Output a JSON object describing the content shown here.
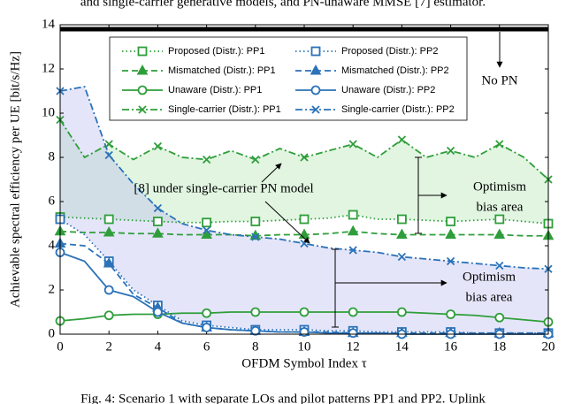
{
  "chart_data": {
    "type": "line",
    "header_text": "and single-carrier generative models, and PN-unaware MMSE [7] estimator.",
    "caption": "Fig. 4: Scenario 1 with separate LOs and pilot patterns PP1 and PP2. Uplink",
    "xlabel": "OFDM Symbol Index τ",
    "ylabel": "Achievable spectral efficiency per UE [bit/s/Hz]",
    "xlim": [
      0,
      20
    ],
    "ylim": [
      0,
      14
    ],
    "xticks": [
      0,
      2,
      4,
      6,
      8,
      10,
      12,
      14,
      16,
      18,
      20
    ],
    "yticks": [
      0,
      2,
      4,
      6,
      8,
      10,
      12,
      14
    ],
    "marker_every": 2,
    "x": [
      0,
      1,
      2,
      3,
      4,
      5,
      6,
      7,
      8,
      9,
      10,
      11,
      12,
      13,
      14,
      15,
      16,
      17,
      18,
      19,
      20
    ],
    "series": [
      {
        "name": "Proposed (Distr.): PP1",
        "color": "#2f9e3a",
        "marker": "square",
        "linestyle": "dotted",
        "values": [
          5.3,
          5.25,
          5.2,
          5.15,
          5.1,
          5.05,
          5.05,
          5.1,
          5.1,
          5.15,
          5.2,
          5.25,
          5.4,
          5.2,
          5.2,
          5.15,
          5.1,
          5.15,
          5.2,
          5.1,
          5.0
        ]
      },
      {
        "name": "Mismatched (Distr.): PP1",
        "color": "#2f9e3a",
        "marker": "triangle",
        "linestyle": "dashed",
        "values": [
          4.65,
          4.6,
          4.6,
          4.55,
          4.55,
          4.5,
          4.5,
          4.5,
          4.45,
          4.5,
          4.5,
          4.55,
          4.65,
          4.55,
          4.5,
          4.5,
          4.5,
          4.5,
          4.5,
          4.45,
          4.45
        ]
      },
      {
        "name": "Unaware (Distr.): PP1",
        "color": "#2f9e3a",
        "marker": "circle",
        "linestyle": "solid",
        "values": [
          0.6,
          0.7,
          0.85,
          0.9,
          0.9,
          0.95,
          0.95,
          1.0,
          1.0,
          1.0,
          1.0,
          1.0,
          1.0,
          1.0,
          1.0,
          0.95,
          0.9,
          0.85,
          0.75,
          0.65,
          0.55
        ]
      },
      {
        "name": "Single-carrier (Distr.): PP1",
        "color": "#2f9e3a",
        "marker": "x",
        "linestyle": "dashdot",
        "values": [
          9.7,
          8.0,
          8.6,
          7.9,
          8.5,
          8.0,
          7.9,
          8.3,
          7.9,
          8.4,
          8.0,
          8.3,
          8.6,
          8.0,
          8.8,
          8.0,
          8.3,
          8.0,
          8.6,
          8.0,
          7.0
        ]
      },
      {
        "name": "Proposed (Distr.): PP2",
        "color": "#2b72b8",
        "marker": "square",
        "linestyle": "dotted",
        "values": [
          5.2,
          4.5,
          3.3,
          2.0,
          1.3,
          0.6,
          0.4,
          0.3,
          0.2,
          0.2,
          0.2,
          0.15,
          0.15,
          0.1,
          0.1,
          0.1,
          0.1,
          0.05,
          0.05,
          0.05,
          0.05
        ]
      },
      {
        "name": "Mismatched (Distr.): PP2",
        "color": "#2b72b8",
        "marker": "triangle",
        "linestyle": "dashed",
        "values": [
          4.1,
          4.0,
          3.2,
          1.8,
          1.2,
          0.5,
          0.3,
          0.2,
          0.15,
          0.1,
          0.1,
          0.1,
          0.05,
          0.05,
          0.05,
          0.05,
          0.05,
          0.05,
          0.05,
          0.05,
          0.05
        ]
      },
      {
        "name": "Unaware (Distr.): PP2",
        "color": "#2b72b8",
        "marker": "circle",
        "linestyle": "solid",
        "values": [
          3.7,
          3.3,
          2.0,
          1.7,
          1.0,
          0.5,
          0.3,
          0.2,
          0.15,
          0.1,
          0.1,
          0.05,
          0.05,
          0.05,
          0,
          0,
          0,
          0,
          0,
          0,
          0
        ]
      },
      {
        "name": "Single-carrier (Distr.): PP2",
        "color": "#2b72b8",
        "marker": "x",
        "linestyle": "dashdot",
        "values": [
          11.0,
          11.2,
          8.1,
          6.8,
          5.7,
          5.0,
          4.7,
          4.5,
          4.4,
          4.3,
          4.1,
          3.9,
          3.8,
          3.7,
          3.5,
          3.4,
          3.3,
          3.2,
          3.1,
          3.0,
          2.95
        ]
      }
    ],
    "no_pn": {
      "label": "No PN",
      "value": 13.8,
      "color": "#000000"
    },
    "annotations": [
      {
        "text": "[8] under single-carrier PN model",
        "color": "#000000"
      },
      {
        "lines": [
          "Optimism",
          "bias area"
        ],
        "color": "#2f9e3a"
      },
      {
        "lines": [
          "Optimism",
          "bias area"
        ],
        "color": "#2b72b8"
      }
    ]
  }
}
